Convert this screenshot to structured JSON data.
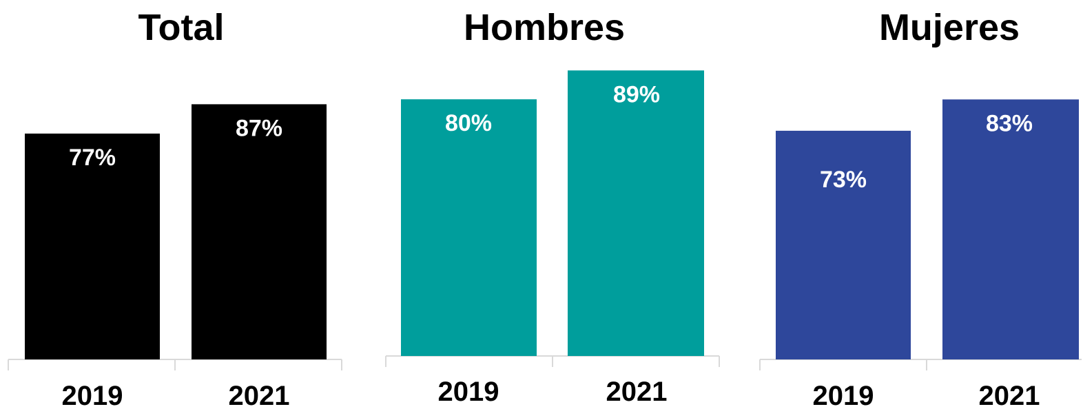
{
  "chart_data": [
    {
      "type": "bar",
      "title": "Total",
      "categories": [
        "2019",
        "2021"
      ],
      "values": [
        77,
        87
      ],
      "value_labels": [
        "77%",
        "87%"
      ],
      "color": "#000000",
      "ylim": [
        0,
        100
      ],
      "grid": false,
      "legend": "none"
    },
    {
      "type": "bar",
      "title": "Hombres",
      "categories": [
        "2019",
        "2021"
      ],
      "values": [
        80,
        89
      ],
      "value_labels": [
        "80%",
        "89%"
      ],
      "color": "#009E9C",
      "ylim": [
        0,
        100
      ],
      "grid": false,
      "legend": "none"
    },
    {
      "type": "bar",
      "title": "Mujeres",
      "categories": [
        "2019",
        "2021"
      ],
      "values": [
        73,
        83
      ],
      "value_labels": [
        "73%",
        "83%"
      ],
      "color": "#2E479B",
      "ylim": [
        0,
        100
      ],
      "grid": false,
      "legend": "none"
    }
  ]
}
